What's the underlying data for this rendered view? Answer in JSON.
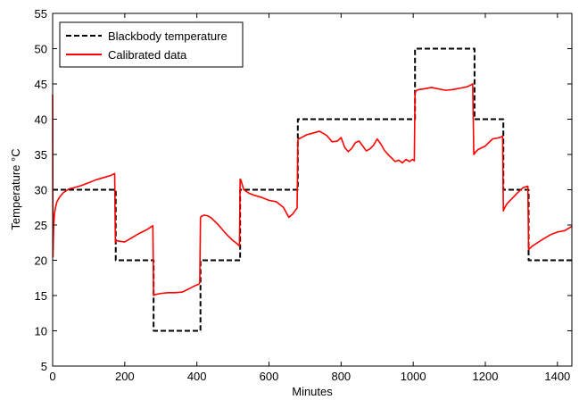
{
  "chart_data": {
    "type": "line",
    "title": "",
    "xlabel": "Minutes",
    "ylabel": "Temperature °C",
    "xlim": [
      0,
      1440
    ],
    "ylim": [
      5,
      55
    ],
    "xticks": [
      0,
      200,
      400,
      600,
      800,
      1000,
      1200,
      1400
    ],
    "yticks": [
      5,
      10,
      15,
      20,
      25,
      30,
      35,
      40,
      45,
      50,
      55
    ],
    "grid": false,
    "legend": "top-left",
    "series": [
      {
        "name": "Blackbody temperature",
        "color": "#000000",
        "style": "dashed",
        "x": [
          0,
          175,
          175,
          280,
          280,
          410,
          410,
          520,
          520,
          680,
          680,
          1005,
          1005,
          1170,
          1170,
          1250,
          1250,
          1320,
          1320,
          1440
        ],
        "y": [
          30,
          30,
          20,
          20,
          10,
          10,
          20,
          20,
          30,
          30,
          40,
          40,
          50,
          50,
          40,
          40,
          30,
          30,
          20,
          20
        ]
      },
      {
        "name": "Calibrated data",
        "color": "#ff0000",
        "style": "solid",
        "x": [
          0,
          1,
          2,
          3,
          5,
          8,
          12,
          20,
          30,
          45,
          60,
          80,
          100,
          120,
          140,
          160,
          172,
          174,
          175,
          177,
          185,
          200,
          220,
          240,
          260,
          275,
          278,
          280,
          282,
          300,
          320,
          340,
          360,
          380,
          395,
          405,
          408,
          410,
          412,
          420,
          430,
          440,
          460,
          480,
          500,
          515,
          518,
          520,
          522,
          530,
          545,
          560,
          580,
          600,
          620,
          640,
          655,
          665,
          672,
          678,
          680,
          682,
          690,
          705,
          720,
          740,
          760,
          775,
          790,
          800,
          810,
          820,
          830,
          840,
          850,
          860,
          870,
          880,
          890,
          900,
          910,
          920,
          930,
          940,
          950,
          960,
          970,
          980,
          990,
          998,
          1003,
          1005,
          1007,
          1015,
          1030,
          1050,
          1070,
          1090,
          1110,
          1130,
          1150,
          1165,
          1168,
          1170,
          1172,
          1180,
          1200,
          1220,
          1240,
          1248,
          1250,
          1252,
          1260,
          1275,
          1290,
          1305,
          1318,
          1320,
          1322,
          1330,
          1345,
          1360,
          1380,
          1400,
          1420,
          1440
        ],
        "y": [
          43.5,
          20.5,
          23,
          25,
          26.5,
          27.5,
          28.3,
          29,
          29.6,
          30.1,
          30.3,
          30.6,
          31,
          31.4,
          31.7,
          32,
          32.3,
          22.6,
          22.6,
          22.8,
          22.7,
          22.6,
          23.2,
          23.8,
          24.3,
          24.8,
          24.9,
          15,
          15.1,
          15.3,
          15.4,
          15.4,
          15.5,
          16,
          16.4,
          16.6,
          16.8,
          26,
          26.2,
          26.4,
          26.3,
          26,
          25,
          23.8,
          22.8,
          22.2,
          22,
          31.5,
          31.4,
          30,
          29.5,
          29.2,
          28.9,
          28.5,
          28.3,
          27.5,
          26.1,
          26.5,
          27,
          27.4,
          37,
          37.2,
          37.4,
          37.8,
          38,
          38.3,
          37.7,
          36.8,
          36.9,
          37.4,
          36,
          35.4,
          35.9,
          36.7,
          36.9,
          36.2,
          35.5,
          35.8,
          36.3,
          37.2,
          36.5,
          35.6,
          35,
          34.5,
          34,
          34.2,
          33.8,
          34.3,
          34,
          34.3,
          34.1,
          43.6,
          44,
          44.2,
          44.3,
          44.5,
          44.3,
          44.1,
          44.2,
          44.4,
          44.6,
          45,
          35,
          35.1,
          35.3,
          35.7,
          36.2,
          37.2,
          37.4,
          37.6,
          27,
          27.3,
          28,
          28.8,
          29.6,
          30.3,
          30.5,
          21.5,
          21.6,
          22,
          22.5,
          23,
          23.6,
          24,
          24.2,
          24.8
        ]
      }
    ]
  }
}
